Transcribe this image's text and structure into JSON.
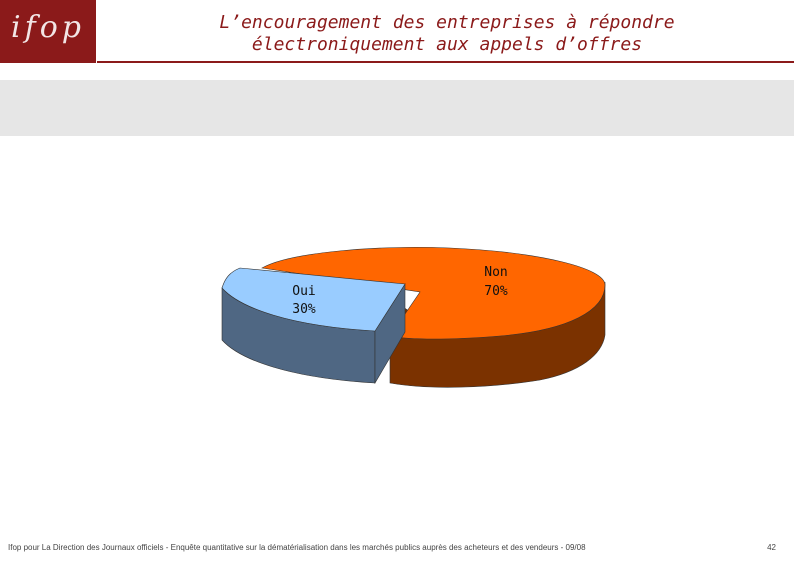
{
  "logo": {
    "text": "ifop"
  },
  "title": {
    "line1": "L’encouragement des entreprises à répondre",
    "line2": "électroniquement aux appels d’offres"
  },
  "chart_data": {
    "type": "pie",
    "categories": [
      "Oui",
      "Non"
    ],
    "values": [
      30,
      70
    ],
    "data_labels": [
      "30%",
      "70%"
    ],
    "colors": [
      "#99ccff",
      "#ff6600"
    ],
    "side_colors": [
      "#4f6783",
      "#7b3200"
    ]
  },
  "footer": {
    "text": "Ifop pour La Direction des Journaux officiels - Enquête quantitative sur la dématérialisation dans les marchés publics auprès des acheteurs et des vendeurs - 09/08",
    "page": "42"
  }
}
